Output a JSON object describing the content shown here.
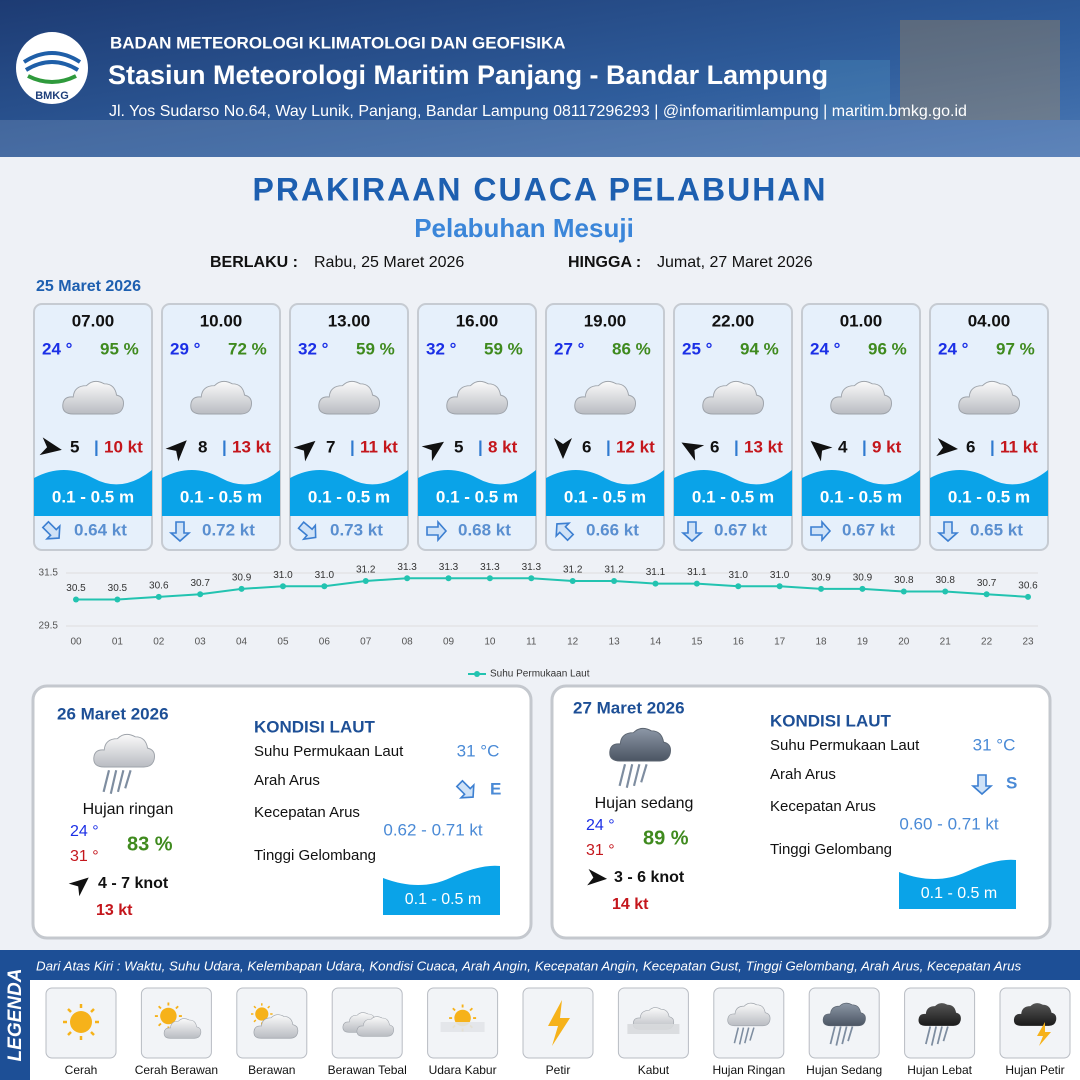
{
  "header": {
    "logo": "BMKG",
    "agency": "BADAN METEOROLOGI KLIMATOLOGI DAN GEOFISIKA",
    "station": "Stasiun Meteorologi Maritim Panjang - Bandar Lampung",
    "address": "Jl. Yos Sudarso No.64, Way Lunik, Panjang, Bandar Lampung 08117296293 | @infomaritimlampung | maritim.bmkg.go.id"
  },
  "title": "PRAKIRAAN CUACA PELABUHAN",
  "subtitle": "Pelabuhan Mesuji",
  "valid_from_label": "BERLAKU :",
  "valid_from": "Rabu, 25 Maret 2026",
  "valid_to_label": "HINGGA :",
  "valid_to": "Jumat, 27 Maret 2026",
  "day1_date": "25 Maret 2026",
  "hourly": [
    {
      "time": "07.00",
      "temp": "24 °",
      "humidity": "95 %",
      "wind_speed": 5,
      "gust": "10 kt",
      "wave": "0.1 - 0.5 m",
      "current": "0.64 kt"
    },
    {
      "time": "10.00",
      "temp": "29 °",
      "humidity": "72 %",
      "wind_speed": 8,
      "gust": "13 kt",
      "wave": "0.1 - 0.5 m",
      "current": "0.72 kt"
    },
    {
      "time": "13.00",
      "temp": "32 °",
      "humidity": "59 %",
      "wind_speed": 7,
      "gust": "11 kt",
      "wave": "0.1 - 0.5 m",
      "current": "0.73 kt"
    },
    {
      "time": "16.00",
      "temp": "32 °",
      "humidity": "59 %",
      "wind_speed": 5,
      "gust": "8 kt",
      "wave": "0.1 - 0.5 m",
      "current": "0.68 kt"
    },
    {
      "time": "19.00",
      "temp": "27 °",
      "humidity": "86 %",
      "wind_speed": 6,
      "gust": "12 kt",
      "wave": "0.1 - 0.5 m",
      "current": "0.66 kt"
    },
    {
      "time": "22.00",
      "temp": "25 °",
      "humidity": "94 %",
      "wind_speed": 6,
      "gust": "13 kt",
      "wave": "0.1 - 0.5 m",
      "current": "0.67 kt"
    },
    {
      "time": "01.00",
      "temp": "24 °",
      "humidity": "96 %",
      "wind_speed": 4,
      "gust": "9 kt",
      "wave": "0.1 - 0.5 m",
      "current": "0.67 kt"
    },
    {
      "time": "04.00",
      "temp": "24 °",
      "humidity": "97 %",
      "wind_speed": 6,
      "gust": "11 kt",
      "wave": "0.1 - 0.5 m",
      "current": "0.65 kt"
    }
  ],
  "chart_data": {
    "type": "line",
    "categories": [
      "00",
      "01",
      "02",
      "03",
      "04",
      "05",
      "06",
      "07",
      "08",
      "09",
      "10",
      "11",
      "12",
      "13",
      "14",
      "15",
      "16",
      "17",
      "18",
      "19",
      "20",
      "21",
      "22",
      "23"
    ],
    "series": [
      {
        "name": "Suhu Permukaan Laut",
        "color": "#22c3b0",
        "values": [
          30.5,
          30.5,
          30.6,
          30.7,
          30.9,
          31.0,
          31.0,
          31.2,
          31.3,
          31.3,
          31.3,
          31.3,
          31.2,
          31.2,
          31.1,
          31.1,
          31.0,
          31.0,
          30.9,
          30.9,
          30.8,
          30.8,
          30.7,
          30.6
        ],
        "value_labels": [
          "30.5",
          "30.5",
          "30.6",
          "30.7",
          "30.9",
          "31.0",
          "31.0",
          "31.2",
          "31.3",
          "31.3",
          "31.3",
          "31.3",
          "31.2",
          "31.2",
          "31.1",
          "31.1",
          "31.0",
          "31.0",
          "30.9",
          "30.9",
          "30.8",
          "30.8",
          "30.7",
          "30.6"
        ]
      }
    ],
    "ylim": [
      29.5,
      31.5
    ],
    "yticks": [
      29.5,
      31.5
    ],
    "legend": "bottom"
  },
  "days": [
    {
      "date": "26 Maret 2026",
      "condition": "Hujan ringan",
      "temp_min": "24 °",
      "temp_max": "31 °",
      "humidity": "83 %",
      "wind": "4  - 7 knot",
      "gust": "13 kt",
      "sea_title": "KONDISI LAUT",
      "sst_label": "Suhu Permukaan Laut",
      "sst": "31 °C",
      "current_dir_label": "Arah Arus",
      "current_dir": "E",
      "current_speed_label": "Kecepatan Arus",
      "current_speed": "0.62 - 0.71 kt",
      "wave_label": "Tinggi Gelombang",
      "wave": "0.1 - 0.5 m"
    },
    {
      "date": "27 Maret 2026",
      "condition": "Hujan sedang",
      "temp_min": "24 °",
      "temp_max": "31 °",
      "humidity": "89 %",
      "wind": "3  - 6 knot",
      "gust": "14 kt",
      "sea_title": "KONDISI LAUT",
      "sst_label": "Suhu Permukaan Laut",
      "sst": "31 °C",
      "current_dir_label": "Arah Arus",
      "current_dir": "S",
      "current_speed_label": "Kecepatan Arus",
      "current_speed": "0.60 -  0.71 kt",
      "wave_label": "Tinggi Gelombang",
      "wave": "0.1 - 0.5 m"
    }
  ],
  "legend": {
    "title": "LEGENDA",
    "note": "Dari Atas Kiri : Waktu, Suhu Udara, Kelembapan Udara, Kondisi Cuaca, Arah Angin, Kecepatan Angin, Kecepatan Gust, Tinggi Gelombang, Arah Arus, Kecepatan Arus",
    "items": [
      "Cerah",
      "Cerah Berawan",
      "Berawan",
      "Berawan Tebal",
      "Udara Kabur",
      "Petir",
      "Kabut",
      "Hujan Ringan",
      "Hujan Sedang",
      "Hujan Lebat",
      "Hujan Petir"
    ]
  }
}
